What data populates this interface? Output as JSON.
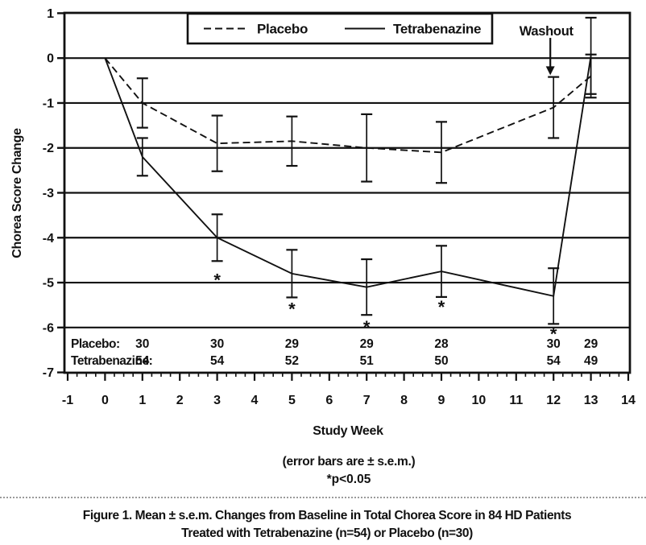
{
  "figure": {
    "washout_label": "Washout",
    "footnote_line1": "(error bars are ± s.e.m.)",
    "footnote_line2": "*p<0.05",
    "caption_line1": "Figure 1. Mean ± s.e.m. Changes from Baseline in Total Chorea Score in 84 HD Patients",
    "caption_line2": "Treated with Tetrabenazine (n=54) or Placebo (n=30)",
    "ink_color": "#111111"
  },
  "chart_data": {
    "type": "line",
    "title": "",
    "xlabel": "Study Week",
    "ylabel": "Chorea Score Change",
    "xlim": [
      -1,
      14
    ],
    "ylim": [
      -7,
      1
    ],
    "x_major_ticks": [
      -1,
      0,
      1,
      2,
      3,
      4,
      5,
      6,
      7,
      8,
      9,
      10,
      11,
      12,
      13,
      14
    ],
    "x_minor_tick_step": 0.25,
    "y_ticks": [
      1,
      0,
      -1,
      -2,
      -3,
      -4,
      -5,
      -6,
      -7
    ],
    "gridlines_y": [
      0,
      -1,
      -2,
      -3,
      -4,
      -5,
      -6
    ],
    "grid": true,
    "legend_position": "top-center",
    "legend": [
      {
        "name": "Placebo",
        "style": "dashed"
      },
      {
        "name": "Tetrabenazine",
        "style": "solid"
      }
    ],
    "series": [
      {
        "name": "Placebo",
        "line_style": "dashed",
        "x": [
          0,
          1,
          3,
          5,
          7,
          9,
          12,
          13
        ],
        "y": [
          0,
          -1.0,
          -1.9,
          -1.85,
          -2.0,
          -2.1,
          -1.1,
          -0.4
        ],
        "sem": [
          0,
          0.55,
          0.62,
          0.55,
          0.75,
          0.68,
          0.68,
          0.48
        ]
      },
      {
        "name": "Tetrabenazine",
        "line_style": "solid",
        "x": [
          0,
          1,
          3,
          5,
          7,
          9,
          12,
          13
        ],
        "y": [
          0,
          -2.2,
          -4.0,
          -4.8,
          -5.1,
          -4.75,
          -5.3,
          0.05
        ],
        "sem": [
          0,
          0.42,
          0.52,
          0.53,
          0.62,
          0.57,
          0.62,
          0.85
        ]
      }
    ],
    "significance_stars": [
      {
        "week": 3,
        "y": -4.9
      },
      {
        "week": 5,
        "y": -5.55
      },
      {
        "week": 7,
        "y": -5.95
      },
      {
        "week": 9,
        "y": -5.5
      },
      {
        "week": 12,
        "y": -6.1
      }
    ],
    "washout": {
      "week": 12,
      "arrow_from_y": 0.45,
      "arrow_to_y": -0.38
    },
    "sample_sizes": {
      "weeks": [
        1,
        3,
        5,
        7,
        9,
        12,
        13
      ],
      "rows": [
        {
          "label": "Placebo:",
          "values": [
            "30",
            "30",
            "29",
            "29",
            "28",
            "30",
            "29"
          ]
        },
        {
          "label": "Tetrabenazine:",
          "values": [
            "54",
            "54",
            "52",
            "51",
            "50",
            "54",
            "49"
          ]
        }
      ]
    }
  }
}
